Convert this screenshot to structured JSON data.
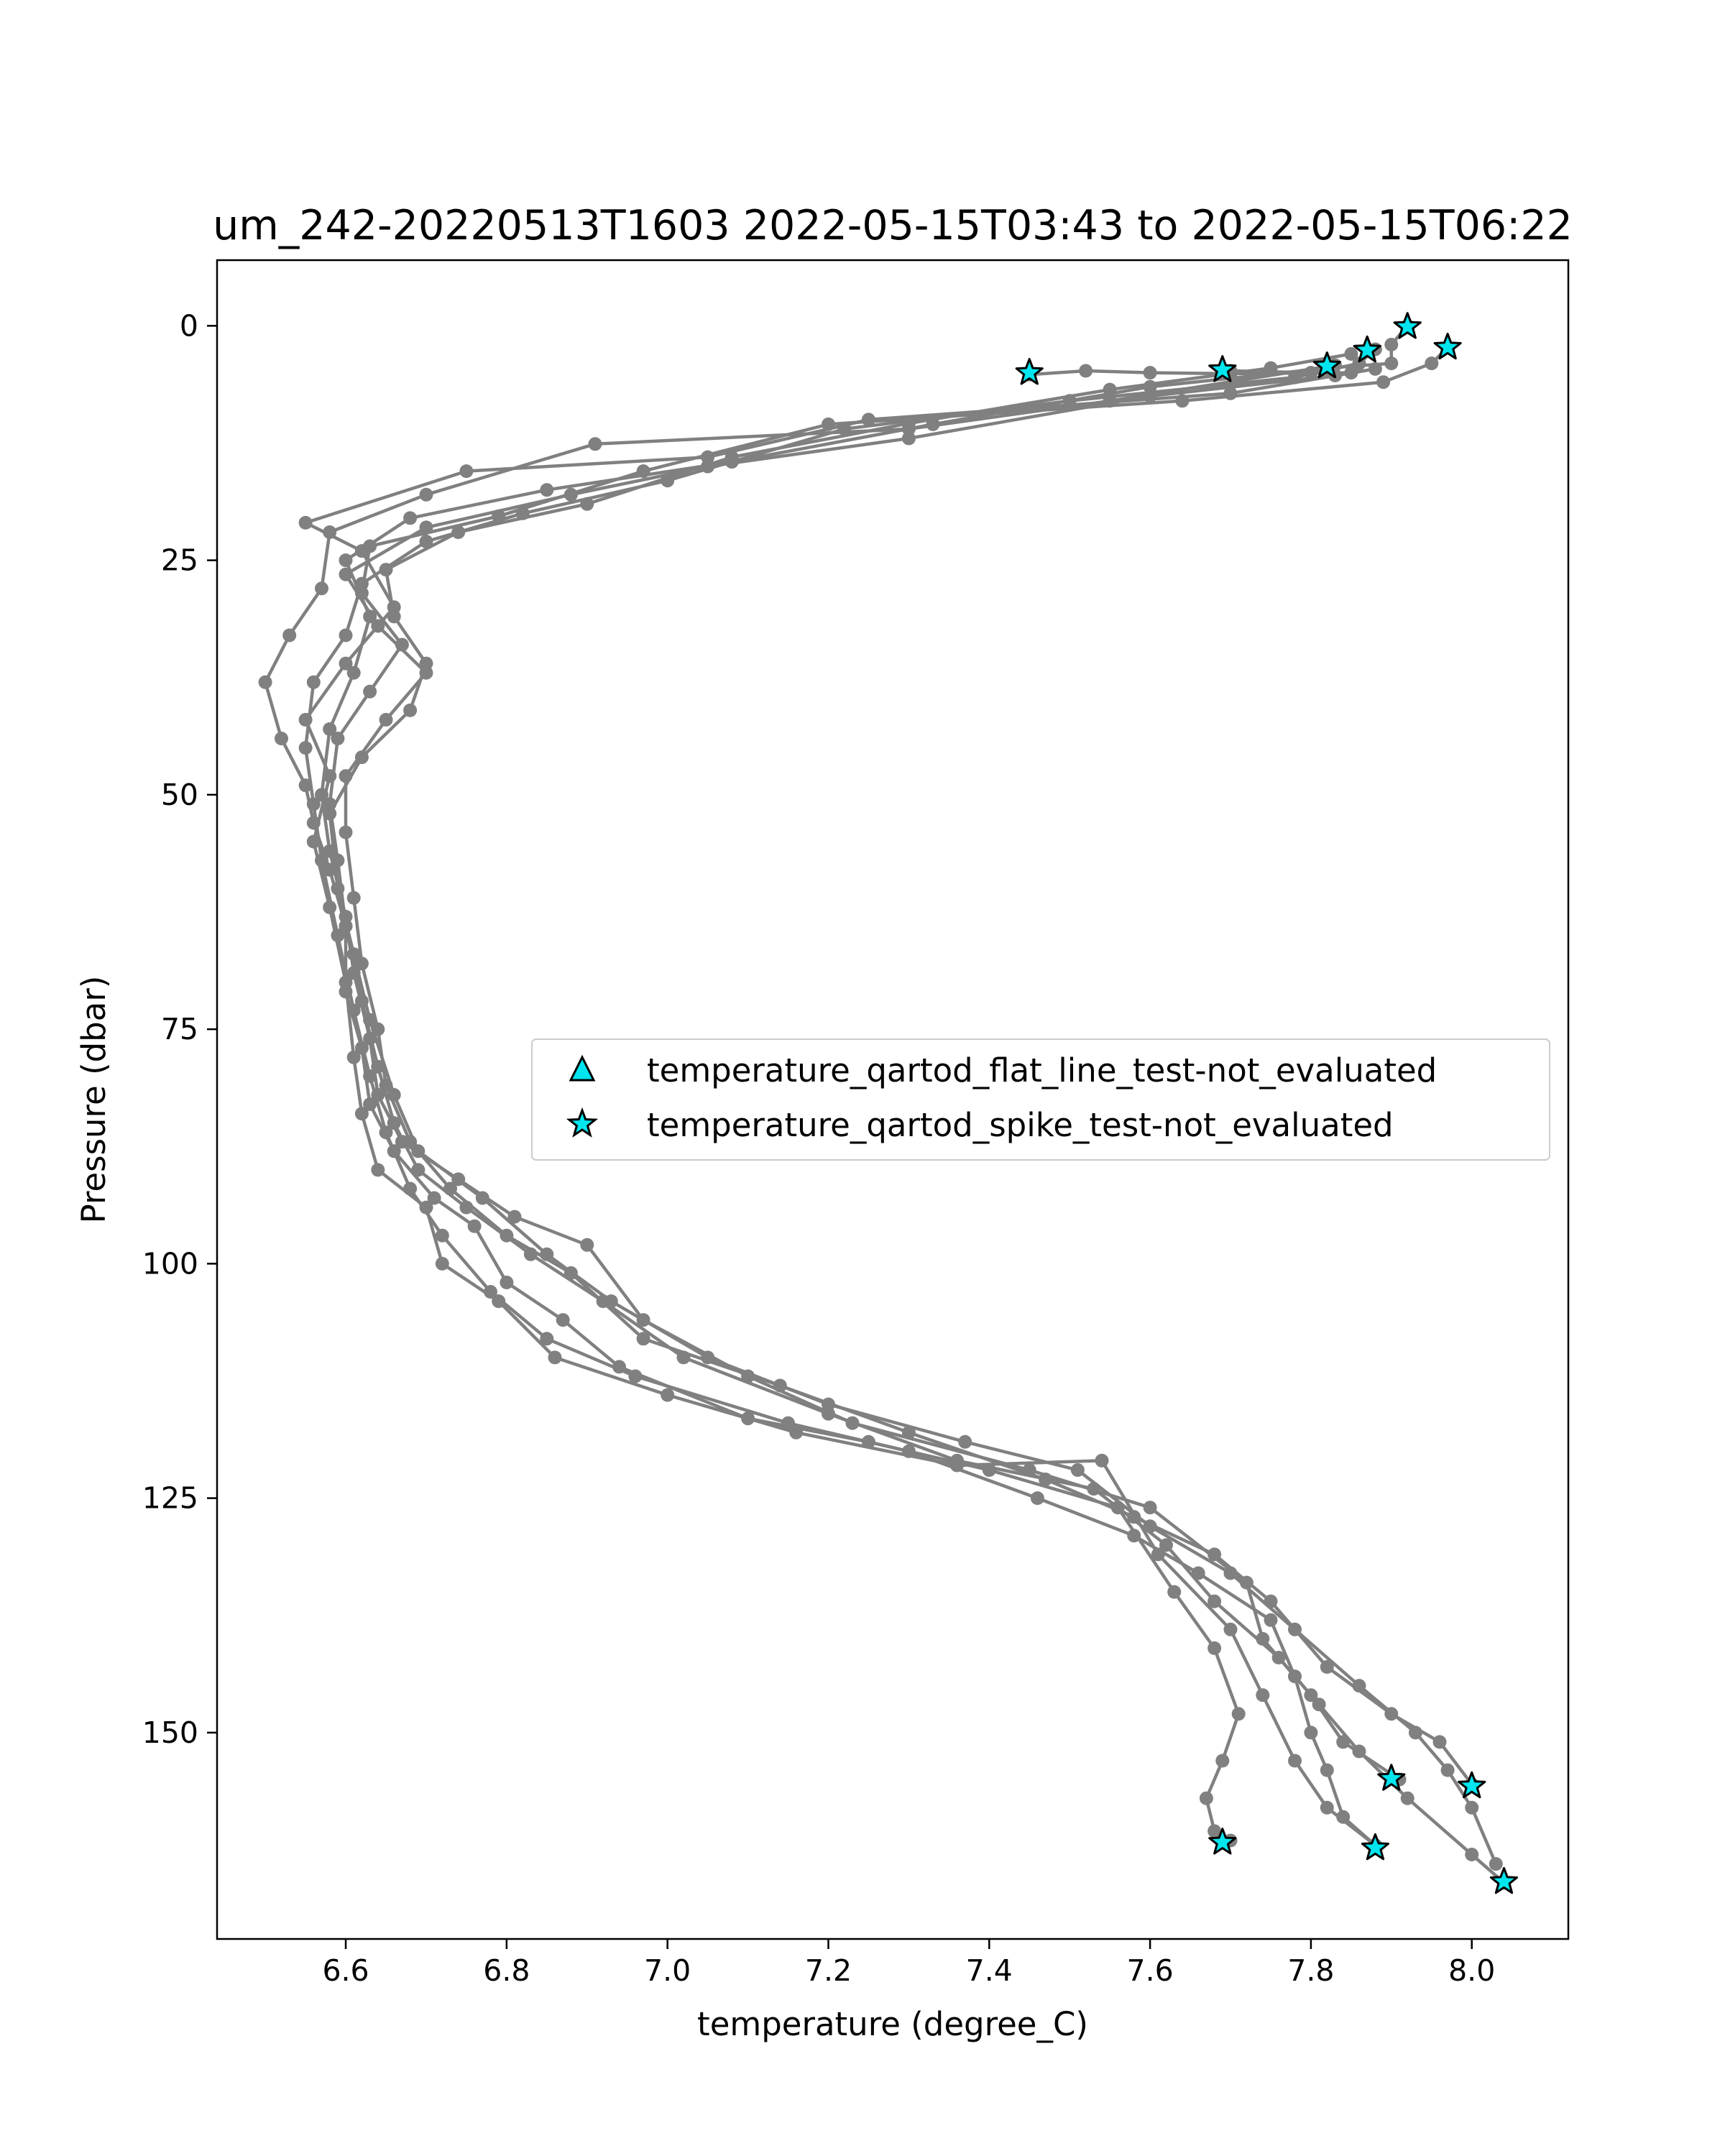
{
  "chart_data": {
    "type": "line",
    "title": "um_242-20220513T1603 2022-05-15T03:43 to 2022-05-15T06:22",
    "xlabel": "temperature (degree_C)",
    "ylabel": "Pressure (dbar)",
    "xlim": [
      6.44,
      8.12
    ],
    "ylim": [
      172,
      -7
    ],
    "y_inverted": true,
    "x_ticks": [
      6.6,
      6.8,
      7.0,
      7.2,
      7.4,
      7.6,
      7.8,
      8.0
    ],
    "x_tick_labels": [
      "6.6",
      "6.8",
      "7.0",
      "7.2",
      "7.4",
      "7.6",
      "7.8",
      "8.0"
    ],
    "y_ticks": [
      0,
      25,
      50,
      75,
      100,
      125,
      150
    ],
    "y_tick_labels": [
      "0",
      "25",
      "50",
      "75",
      "100",
      "125",
      "150"
    ],
    "grid": false,
    "legend_position": "center-right",
    "colors": {
      "profile_line": "#808080",
      "flag_fill": "#00e5ee",
      "flag_edge": "#000000"
    },
    "legend": [
      {
        "label": "temperature_qartod_flat_line_test-not_evaluated",
        "marker": "triangle"
      },
      {
        "label": "temperature_qartod_spike_test-not_evaluated",
        "marker": "star"
      }
    ],
    "series": [
      {
        "style": "line-dots",
        "points": [
          [
            7.45,
            5.2
          ],
          [
            7.52,
            4.8
          ],
          [
            7.6,
            5.0
          ],
          [
            7.7,
            5.1
          ],
          [
            7.85,
            5.0
          ],
          [
            7.88,
            4.6
          ],
          [
            7.7,
            7.2
          ],
          [
            7.25,
            10.0
          ],
          [
            7.05,
            14.0
          ],
          [
            6.75,
            15.5
          ],
          [
            6.55,
            21.0
          ],
          [
            6.62,
            24.0
          ],
          [
            6.66,
            30.0
          ],
          [
            6.6,
            36.0
          ],
          [
            6.55,
            42.0
          ],
          [
            6.58,
            48.0
          ],
          [
            6.56,
            55.0
          ],
          [
            6.58,
            62.0
          ],
          [
            6.6,
            70.0
          ],
          [
            6.61,
            78.0
          ],
          [
            6.62,
            84.0
          ],
          [
            6.64,
            90.0
          ],
          [
            6.7,
            94.0
          ],
          [
            6.72,
            100.0
          ],
          [
            6.79,
            104.0
          ],
          [
            6.86,
            110.0
          ],
          [
            7.0,
            114.0
          ],
          [
            7.16,
            118.0
          ],
          [
            7.36,
            121.5
          ],
          [
            7.54,
            121.0
          ],
          [
            7.61,
            131.0
          ],
          [
            7.7,
            139.0
          ],
          [
            7.74,
            146.0
          ],
          [
            7.78,
            153.0
          ],
          [
            7.82,
            158.0
          ],
          [
            7.88,
            162.0
          ]
        ]
      },
      {
        "style": "line-dots",
        "points": [
          [
            7.7,
            4.8
          ],
          [
            7.8,
            5.0
          ],
          [
            7.83,
            4.2
          ],
          [
            7.55,
            8.0
          ],
          [
            7.3,
            11.0
          ],
          [
            6.91,
            12.6
          ],
          [
            6.7,
            18.0
          ],
          [
            6.58,
            22.0
          ],
          [
            6.57,
            28.0
          ],
          [
            6.53,
            33.0
          ],
          [
            6.5,
            38.0
          ],
          [
            6.52,
            44.0
          ],
          [
            6.55,
            49.0
          ],
          [
            6.56,
            53.0
          ],
          [
            6.58,
            58.0
          ],
          [
            6.6,
            64.0
          ],
          [
            6.6,
            71.0
          ],
          [
            6.62,
            77.0
          ],
          [
            6.63,
            83.0
          ],
          [
            6.66,
            88.0
          ],
          [
            6.71,
            93.0
          ],
          [
            6.76,
            96.0
          ],
          [
            6.8,
            102.0
          ],
          [
            6.87,
            106.0
          ],
          [
            6.94,
            111.0
          ],
          [
            7.1,
            116.5
          ],
          [
            7.25,
            119.0
          ],
          [
            7.4,
            122.0
          ],
          [
            7.56,
            126.0
          ],
          [
            7.63,
            135.0
          ],
          [
            7.68,
            141.0
          ],
          [
            7.71,
            148.0
          ],
          [
            7.69,
            153.0
          ],
          [
            7.67,
            157.0
          ],
          [
            7.68,
            160.5
          ],
          [
            7.7,
            161.5
          ]
        ]
      },
      {
        "style": "line-dots",
        "points": [
          [
            7.92,
            0.0
          ],
          [
            7.9,
            2.0
          ],
          [
            7.9,
            4.0
          ],
          [
            7.82,
            4.5
          ],
          [
            7.6,
            6.5
          ],
          [
            7.33,
            10.5
          ],
          [
            7.08,
            14.5
          ],
          [
            6.85,
            17.5
          ],
          [
            6.68,
            20.5
          ],
          [
            6.6,
            25.0
          ],
          [
            6.63,
            31.0
          ],
          [
            6.61,
            37.0
          ],
          [
            6.58,
            43.0
          ],
          [
            6.57,
            50.0
          ],
          [
            6.58,
            56.0
          ],
          [
            6.6,
            63.0
          ],
          [
            6.61,
            69.0
          ],
          [
            6.63,
            76.0
          ],
          [
            6.64,
            82.0
          ],
          [
            6.67,
            87.0
          ],
          [
            6.74,
            91.0
          ],
          [
            6.81,
            95.0
          ],
          [
            6.9,
            98.0
          ],
          [
            6.97,
            106.0
          ],
          [
            7.1,
            112.0
          ],
          [
            7.23,
            117.0
          ],
          [
            7.45,
            122.0
          ],
          [
            7.6,
            126.0
          ],
          [
            7.72,
            134.0
          ],
          [
            7.74,
            140.0
          ],
          [
            7.8,
            146.0
          ],
          [
            7.84,
            151.0
          ],
          [
            7.91,
            155.0
          ]
        ]
      },
      {
        "style": "line-dots",
        "points": [
          [
            7.97,
            2.3
          ],
          [
            7.95,
            4.0
          ],
          [
            7.89,
            6.0
          ],
          [
            7.64,
            8.0
          ],
          [
            7.2,
            10.5
          ],
          [
            6.97,
            15.5
          ],
          [
            6.79,
            20.3
          ],
          [
            6.63,
            23.5
          ],
          [
            6.62,
            28.5
          ],
          [
            6.67,
            34.0
          ],
          [
            6.63,
            39.0
          ],
          [
            6.59,
            44.0
          ],
          [
            6.58,
            51.0
          ],
          [
            6.59,
            57.0
          ],
          [
            6.6,
            64.0
          ],
          [
            6.62,
            72.0
          ],
          [
            6.64,
            79.0
          ],
          [
            6.66,
            85.0
          ],
          [
            6.69,
            90.0
          ],
          [
            6.75,
            94.0
          ],
          [
            6.83,
            99.0
          ],
          [
            6.92,
            104.0
          ],
          [
            7.02,
            110.0
          ],
          [
            7.2,
            116.0
          ],
          [
            7.36,
            121.0
          ],
          [
            7.53,
            124.0
          ],
          [
            7.62,
            130.0
          ],
          [
            7.68,
            136.0
          ],
          [
            7.76,
            142.0
          ],
          [
            7.81,
            147.0
          ],
          [
            7.86,
            152.0
          ],
          [
            7.92,
            157.0
          ],
          [
            8.0,
            163.0
          ],
          [
            8.04,
            166.0
          ]
        ]
      },
      {
        "style": "line-dots",
        "points": [
          [
            7.88,
            2.5
          ],
          [
            7.86,
            4.0
          ],
          [
            7.78,
            5.5
          ],
          [
            7.5,
            8.0
          ],
          [
            7.22,
            11.0
          ],
          [
            7.0,
            16.5
          ],
          [
            6.82,
            20.0
          ],
          [
            6.7,
            23.0
          ],
          [
            6.62,
            27.5
          ],
          [
            6.6,
            33.0
          ],
          [
            6.56,
            38.0
          ],
          [
            6.55,
            45.0
          ],
          [
            6.56,
            51.0
          ],
          [
            6.57,
            57.0
          ],
          [
            6.59,
            65.0
          ],
          [
            6.61,
            73.0
          ],
          [
            6.63,
            80.0
          ],
          [
            6.65,
            86.0
          ],
          [
            6.68,
            92.0
          ],
          [
            6.72,
            97.0
          ],
          [
            6.78,
            103.0
          ],
          [
            6.85,
            108.0
          ],
          [
            6.96,
            112.0
          ],
          [
            7.15,
            117.0
          ],
          [
            7.3,
            120.0
          ],
          [
            7.46,
            125.0
          ],
          [
            7.58,
            129.0
          ],
          [
            7.66,
            133.0
          ],
          [
            7.75,
            138.0
          ],
          [
            7.78,
            144.0
          ],
          [
            7.8,
            150.0
          ],
          [
            7.82,
            154.0
          ],
          [
            7.84,
            159.0
          ],
          [
            7.88,
            162.0
          ]
        ]
      },
      {
        "style": "line-dots",
        "points": [
          [
            7.82,
            4.3
          ],
          [
            7.83,
            5.3
          ],
          [
            7.6,
            7.5
          ],
          [
            7.3,
            12.0
          ],
          [
            7.05,
            15.0
          ],
          [
            6.88,
            18.0
          ],
          [
            6.7,
            21.5
          ],
          [
            6.6,
            26.5
          ],
          [
            6.64,
            32.0
          ],
          [
            6.7,
            37.0
          ],
          [
            6.65,
            42.0
          ],
          [
            6.6,
            48.0
          ],
          [
            6.6,
            54.0
          ],
          [
            6.61,
            61.0
          ],
          [
            6.62,
            68.0
          ],
          [
            6.64,
            75.0
          ],
          [
            6.65,
            81.0
          ],
          [
            6.68,
            87.0
          ],
          [
            6.73,
            92.0
          ],
          [
            6.8,
            97.0
          ],
          [
            6.88,
            101.0
          ],
          [
            6.97,
            108.0
          ],
          [
            7.14,
            113.0
          ],
          [
            7.3,
            118.0
          ],
          [
            7.47,
            123.0
          ],
          [
            7.58,
            127.0
          ],
          [
            7.68,
            131.0
          ],
          [
            7.75,
            136.0
          ],
          [
            7.82,
            143.0
          ],
          [
            7.9,
            148.0
          ],
          [
            7.96,
            151.0
          ],
          [
            8.0,
            155.5
          ]
        ]
      },
      {
        "style": "line-dots",
        "points": [
          [
            7.85,
            3.0
          ],
          [
            7.75,
            4.5
          ],
          [
            7.55,
            6.8
          ],
          [
            7.3,
            10.4
          ],
          [
            7.08,
            14.0
          ],
          [
            6.9,
            19.0
          ],
          [
            6.74,
            22.0
          ],
          [
            6.65,
            26.0
          ],
          [
            6.66,
            31.0
          ],
          [
            6.7,
            36.0
          ],
          [
            6.68,
            41.0
          ],
          [
            6.62,
            46.0
          ],
          [
            6.58,
            52.0
          ],
          [
            6.59,
            60.0
          ],
          [
            6.61,
            67.0
          ],
          [
            6.63,
            74.0
          ],
          [
            6.66,
            82.0
          ],
          [
            6.69,
            88.0
          ],
          [
            6.77,
            93.0
          ],
          [
            6.85,
            99.0
          ],
          [
            6.93,
            104.0
          ],
          [
            7.05,
            110.0
          ],
          [
            7.2,
            115.0
          ],
          [
            7.37,
            119.0
          ],
          [
            7.51,
            122.0
          ],
          [
            7.6,
            128.0
          ],
          [
            7.7,
            133.0
          ],
          [
            7.78,
            139.0
          ],
          [
            7.86,
            145.0
          ],
          [
            7.93,
            150.0
          ],
          [
            7.97,
            154.0
          ],
          [
            8.0,
            158.0
          ],
          [
            8.03,
            164.0
          ]
        ]
      }
    ],
    "flags": [
      {
        "marker": "star",
        "x": 7.45,
        "y": 5.0
      },
      {
        "marker": "star",
        "x": 7.69,
        "y": 4.7
      },
      {
        "marker": "star",
        "x": 7.82,
        "y": 4.3
      },
      {
        "marker": "star",
        "x": 7.87,
        "y": 2.6
      },
      {
        "marker": "star",
        "x": 7.92,
        "y": 0.1
      },
      {
        "marker": "star",
        "x": 7.97,
        "y": 2.3
      },
      {
        "marker": "star",
        "x": 7.9,
        "y": 154.9
      },
      {
        "marker": "star",
        "x": 8.0,
        "y": 155.7
      },
      {
        "marker": "star",
        "x": 7.69,
        "y": 161.7
      },
      {
        "marker": "star",
        "x": 7.88,
        "y": 162.3
      },
      {
        "marker": "star",
        "x": 8.04,
        "y": 165.9
      }
    ]
  }
}
